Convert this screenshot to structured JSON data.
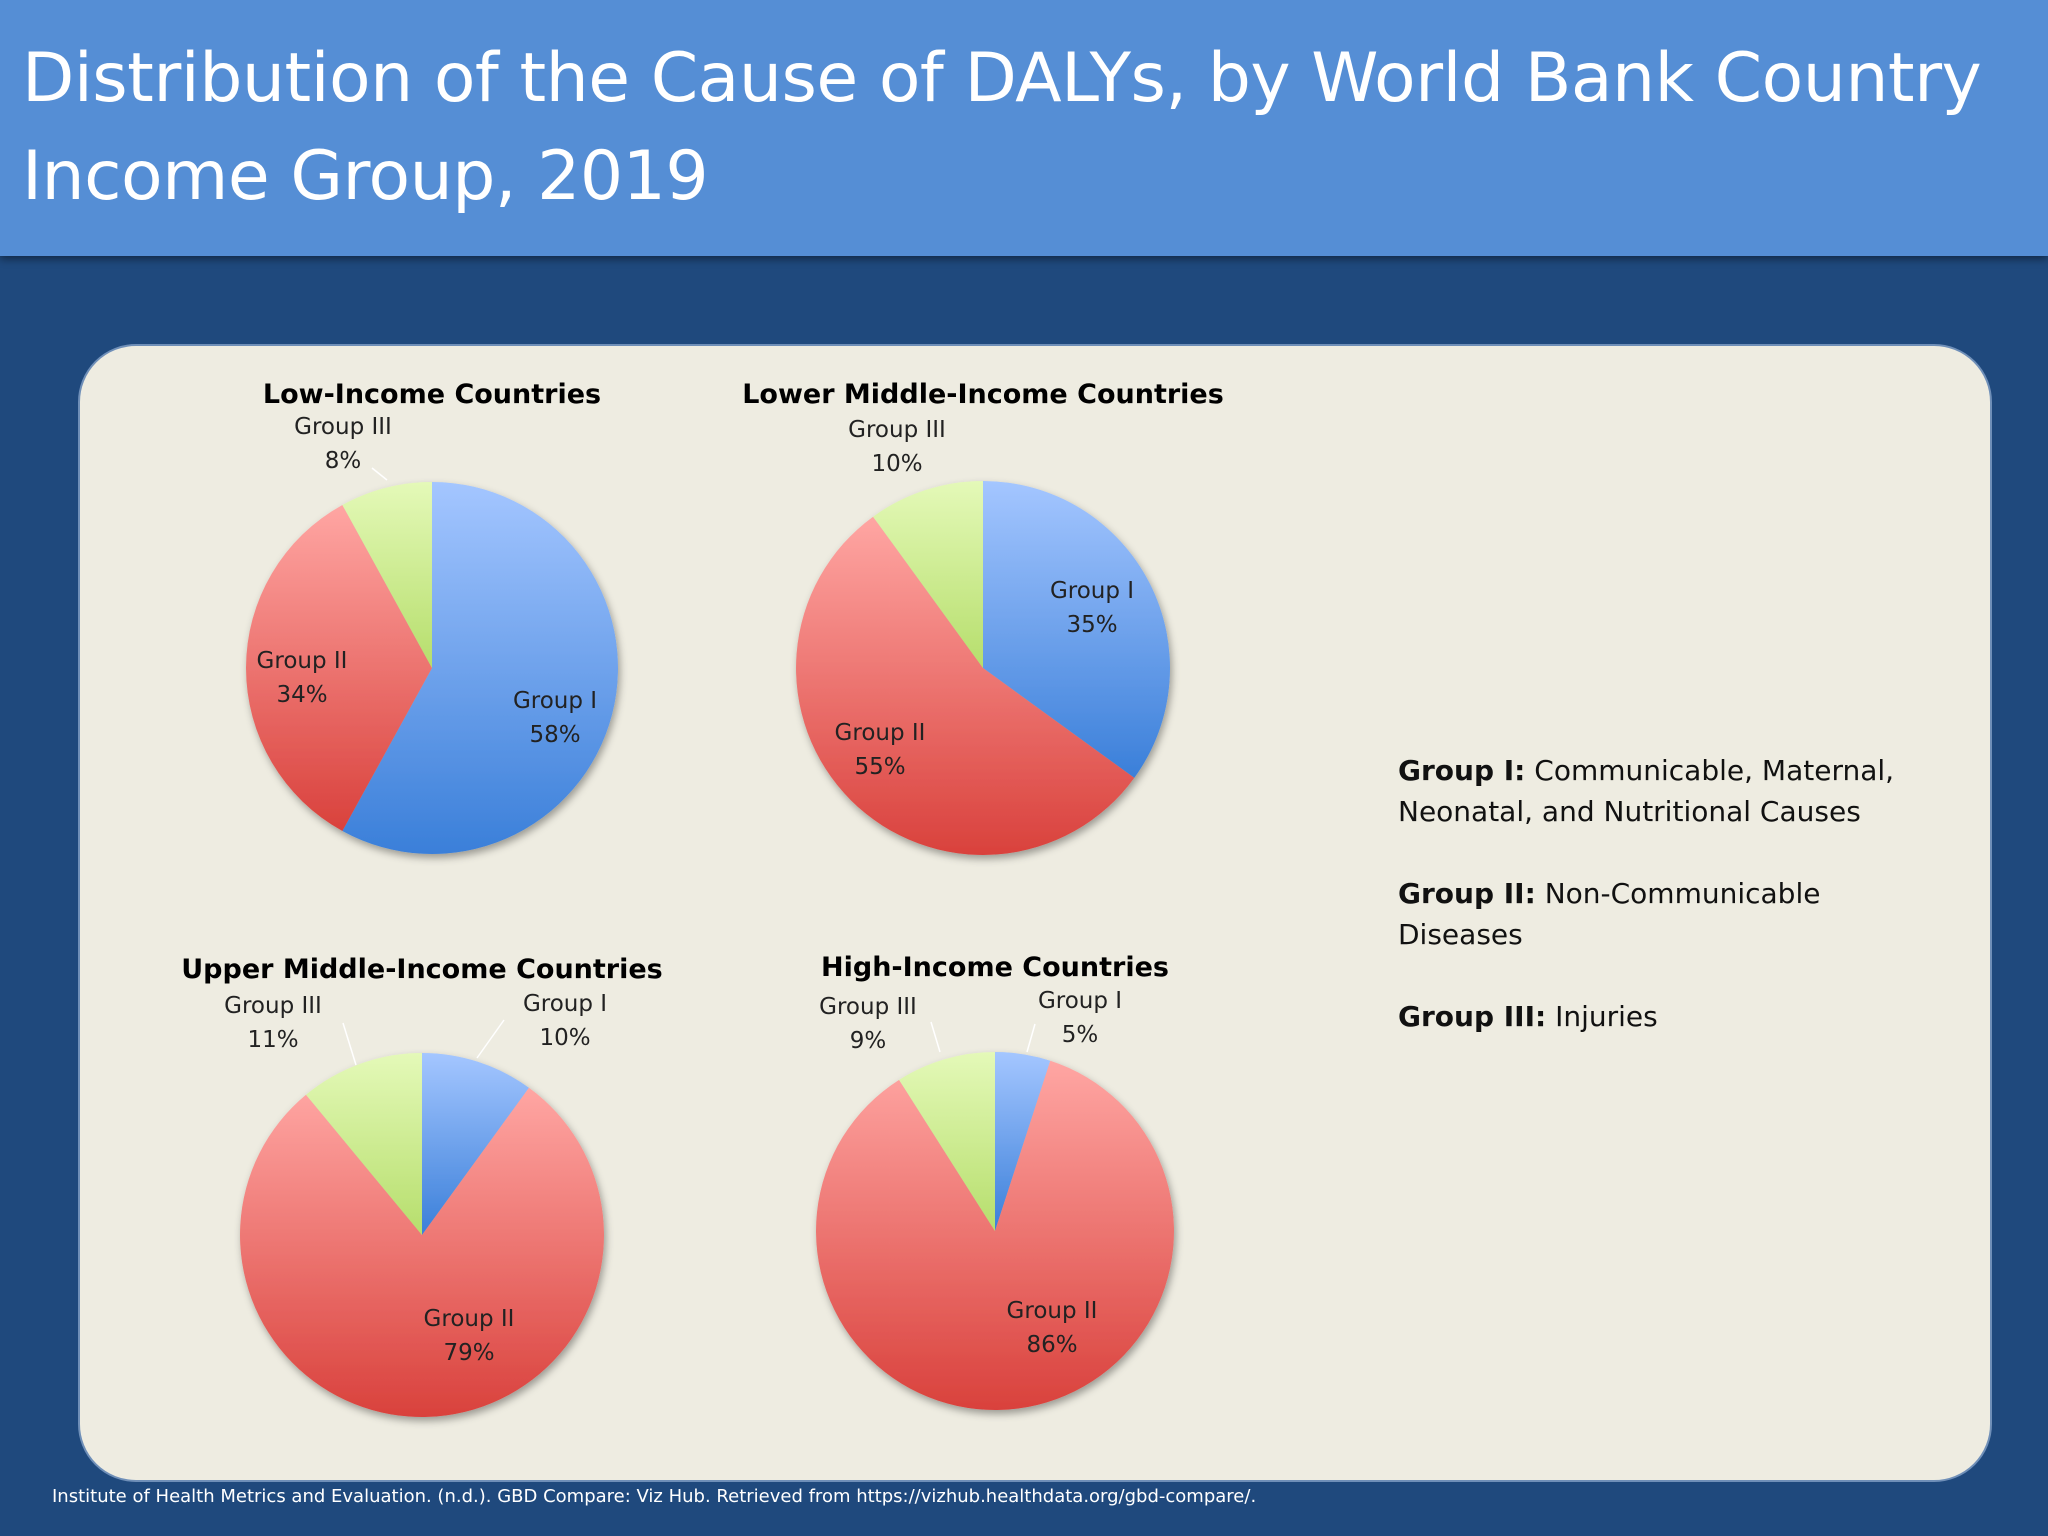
{
  "slide": {
    "title": "Distribution of the Cause of DALYs, by World Bank Country Income Group, 2019",
    "citation": "Institute of Health Metrics and Evaluation. (n.d.). GBD Compare: Viz Hub. Retrieved from https://vizhub.healthdata.org/gbd-compare/.",
    "colors": {
      "header": "#558ed5",
      "background": "#1f497d",
      "panel": "#eeece1"
    }
  },
  "legend": [
    {
      "term": "Group I:",
      "desc": "Communicable, Maternal, Neonatal, and Nutritional Causes"
    },
    {
      "term": "Group II:",
      "desc": "Non-Communicable Diseases"
    },
    {
      "term": "Group III:",
      "desc": "Injuries"
    }
  ],
  "series_colors": {
    "Group I": "#6f9ee6",
    "Group II": "#ee6b66",
    "Group III": "#cbe895"
  },
  "chart_data": [
    {
      "type": "pie",
      "title": "Low-Income Countries",
      "categories": [
        "Group I",
        "Group II",
        "Group III"
      ],
      "values": [
        58,
        34,
        8
      ],
      "labels": [
        "58%",
        "34%",
        "8%"
      ]
    },
    {
      "type": "pie",
      "title": "Lower Middle-Income Countries",
      "categories": [
        "Group I",
        "Group II",
        "Group III"
      ],
      "values": [
        35,
        55,
        10
      ],
      "labels": [
        "35%",
        "55%",
        "10%"
      ]
    },
    {
      "type": "pie",
      "title": "Upper Middle-Income Countries",
      "categories": [
        "Group I",
        "Group II",
        "Group III"
      ],
      "values": [
        10,
        79,
        11
      ],
      "labels": [
        "10%",
        "79%",
        "11%"
      ]
    },
    {
      "type": "pie",
      "title": "High-Income Countries",
      "categories": [
        "Group I",
        "Group II",
        "Group III"
      ],
      "values": [
        5,
        86,
        9
      ],
      "labels": [
        "5%",
        "86%",
        "9%"
      ]
    }
  ]
}
